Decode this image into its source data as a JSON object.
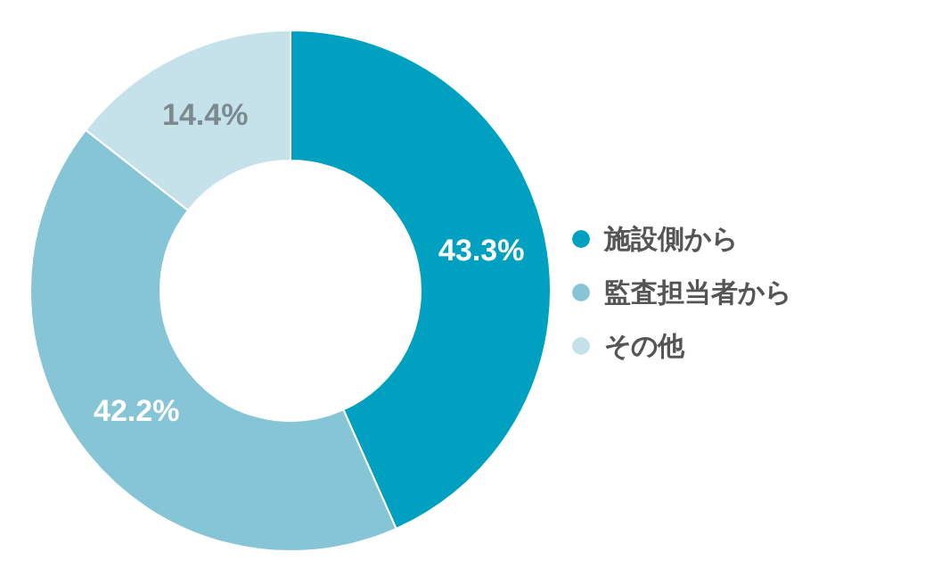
{
  "chart_data": {
    "type": "donut",
    "categories": [
      "施設側から",
      "監査担当者から",
      "その他"
    ],
    "values": [
      43.3,
      42.2,
      14.4
    ],
    "colors": [
      "#00a0c0",
      "#86c5d6",
      "#c5e1ea"
    ],
    "value_labels": [
      "43.3%",
      "42.2%",
      "14.4%"
    ],
    "legend": "right"
  }
}
